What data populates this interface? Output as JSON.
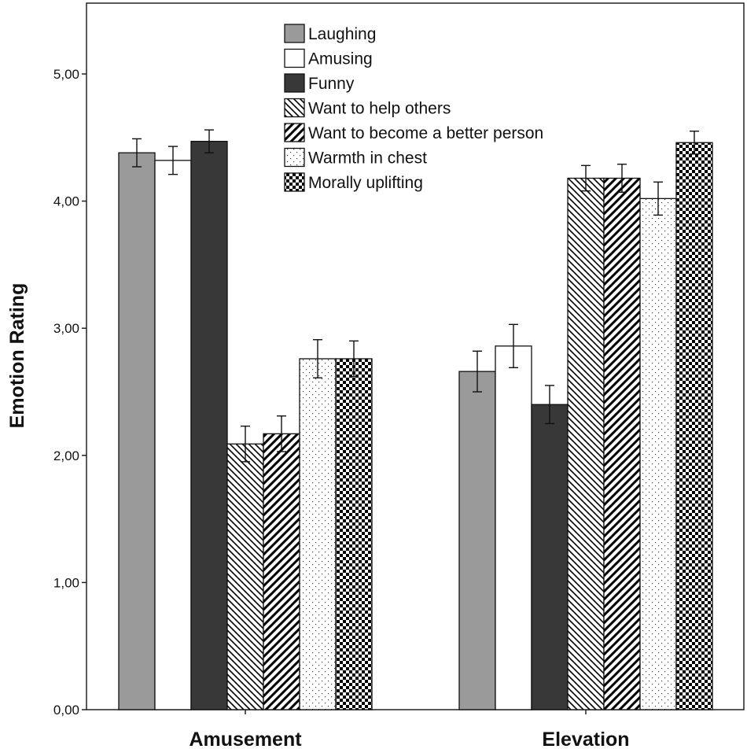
{
  "chart_data": {
    "type": "bar",
    "title": "",
    "xlabel": "",
    "ylabel": "Emotion Rating",
    "ylim": [
      0,
      5.5
    ],
    "yticks": [
      "0,00",
      "1,00",
      "2,00",
      "3,00",
      "4,00",
      "5,00"
    ],
    "ytick_values": [
      0,
      1,
      2,
      3,
      4,
      5
    ],
    "categories": [
      "Amusement",
      "Elevation"
    ],
    "legend_position": "top-center",
    "error_bars": true,
    "series": [
      {
        "name": "Laughing",
        "pattern": "solid-gray",
        "color": "#9a9a9a",
        "values": [
          4.38,
          2.66
        ],
        "errors": [
          0.11,
          0.16
        ]
      },
      {
        "name": "Amusing",
        "pattern": "solid-white",
        "color": "#ffffff",
        "values": [
          4.32,
          2.86
        ],
        "errors": [
          0.11,
          0.17
        ]
      },
      {
        "name": "Funny",
        "pattern": "solid-dark",
        "color": "#383838",
        "values": [
          4.47,
          2.4
        ],
        "errors": [
          0.09,
          0.15
        ]
      },
      {
        "name": "Want to help others",
        "pattern": "diag-back",
        "color": "#000000",
        "values": [
          2.09,
          4.18
        ],
        "errors": [
          0.14,
          0.1
        ]
      },
      {
        "name": "Want to become a better person",
        "pattern": "diag-fwd",
        "color": "#000000",
        "values": [
          2.17,
          4.18
        ],
        "errors": [
          0.14,
          0.11
        ]
      },
      {
        "name": "Warmth in chest",
        "pattern": "dots",
        "color": "#000000",
        "values": [
          2.76,
          4.02
        ],
        "errors": [
          0.15,
          0.13
        ]
      },
      {
        "name": "Morally uplifting",
        "pattern": "checker",
        "color": "#000000",
        "values": [
          2.76,
          4.46
        ],
        "errors": [
          0.14,
          0.09
        ]
      }
    ]
  }
}
